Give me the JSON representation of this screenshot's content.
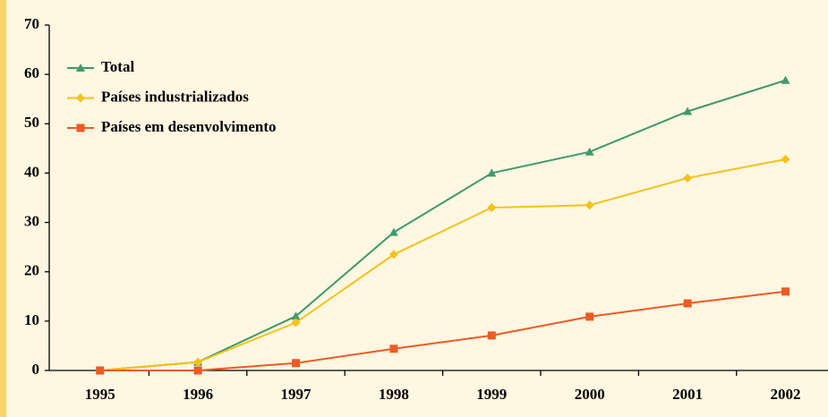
{
  "chart_data": {
    "type": "line",
    "categories": [
      "1995",
      "1996",
      "1997",
      "1998",
      "1999",
      "2000",
      "2001",
      "2002"
    ],
    "series": [
      {
        "name": "Total",
        "color": "#3f9a6a",
        "marker": "triangle",
        "values": [
          0,
          1.7,
          11,
          28,
          40,
          44.3,
          52.5,
          58.8
        ]
      },
      {
        "name": "Países industrializados",
        "color": "#f5c21b",
        "marker": "diamond",
        "values": [
          0,
          1.7,
          9.7,
          23.5,
          33,
          33.5,
          39,
          42.8
        ]
      },
      {
        "name": "Países em desenvolvimento",
        "color": "#ee5a24",
        "marker": "square",
        "values": [
          0,
          0,
          1.5,
          4.4,
          7.1,
          10.9,
          13.6,
          16
        ]
      }
    ],
    "ylim": [
      0,
      70
    ],
    "yticks": [
      0,
      10,
      20,
      30,
      40,
      50,
      60,
      70
    ],
    "legend": "upper left"
  }
}
